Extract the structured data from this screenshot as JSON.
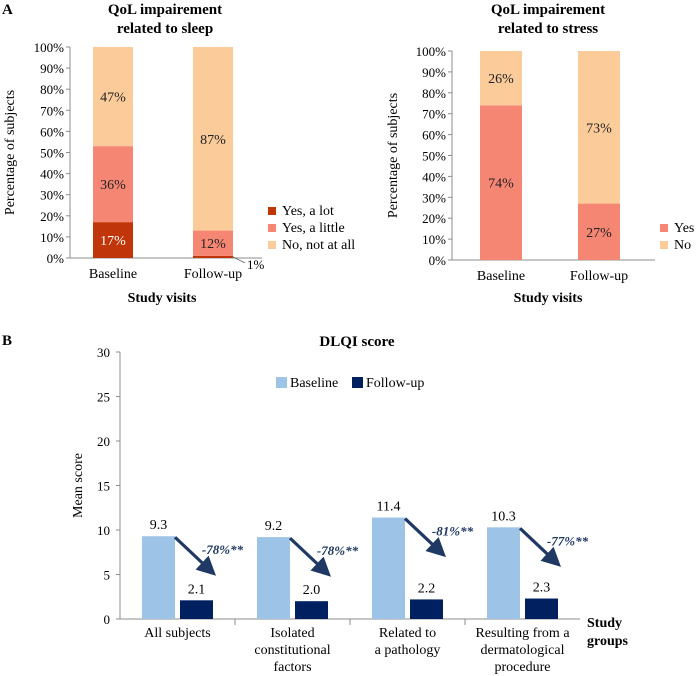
{
  "panel_labels": [
    "A",
    "B"
  ],
  "chart_data": [
    {
      "type": "bar",
      "stacked": true,
      "title_lines": [
        "QoL impairement",
        "related to sleep"
      ],
      "xlabel": "Study visits",
      "ylabel": "Percentage of subjects",
      "ylim": [
        0,
        100
      ],
      "yticks": [
        "0%",
        "10%",
        "20%",
        "30%",
        "40%",
        "50%",
        "60%",
        "70%",
        "80%",
        "90%",
        "100%"
      ],
      "categories": [
        "Baseline",
        "Follow-up"
      ],
      "series": [
        {
          "name": "Yes, a lot",
          "values": [
            17,
            1
          ],
          "labels": [
            "17%",
            "1%"
          ],
          "color": "#c0360a"
        },
        {
          "name": "Yes, a little",
          "values": [
            36,
            12
          ],
          "labels": [
            "36%",
            "12%"
          ],
          "color": "#f68674"
        },
        {
          "name": "No, not at all",
          "values": [
            47,
            87
          ],
          "labels": [
            "47%",
            "87%"
          ],
          "color": "#fbcb9a"
        }
      ],
      "legend": "right",
      "grid": false
    },
    {
      "type": "bar",
      "stacked": true,
      "title_lines": [
        "QoL impairement",
        "related to stress"
      ],
      "xlabel": "Study visits",
      "ylabel": "Percentage of subjects",
      "ylim": [
        0,
        100
      ],
      "yticks": [
        "0%",
        "10%",
        "20%",
        "30%",
        "40%",
        "50%",
        "60%",
        "70%",
        "80%",
        "90%",
        "100%"
      ],
      "categories": [
        "Baseline",
        "Follow-up"
      ],
      "series": [
        {
          "name": "Yes",
          "values": [
            74,
            27
          ],
          "labels": [
            "74%",
            "27%"
          ],
          "color": "#f68674"
        },
        {
          "name": "No",
          "values": [
            26,
            73
          ],
          "labels": [
            "26%",
            "73%"
          ],
          "color": "#fbcb9a"
        }
      ],
      "legend": "right",
      "grid": false
    },
    {
      "type": "bar",
      "title": "DLQI score",
      "ylabel": "Mean score",
      "xlabel_lines": [
        "Study",
        "groups"
      ],
      "ylim": [
        0,
        30
      ],
      "yticks": [
        "0",
        "5",
        "10",
        "15",
        "20",
        "25",
        "30"
      ],
      "categories": [
        [
          "All subjects"
        ],
        [
          "Isolated",
          "constitutional",
          "factors"
        ],
        [
          "Related to",
          "a pathology"
        ],
        [
          "Resulting from a",
          "dermatological",
          "procedure"
        ]
      ],
      "series": [
        {
          "name": "Baseline",
          "values": [
            9.3,
            9.2,
            11.4,
            10.3
          ],
          "labels": [
            "9.3",
            "9.2",
            "11.4",
            "10.3"
          ],
          "color": "#9dc3e6"
        },
        {
          "name": "Follow-up",
          "values": [
            2.1,
            2.0,
            2.2,
            2.3
          ],
          "labels": [
            "2.1",
            "2.0",
            "2.2",
            "2.3"
          ],
          "color": "#002060"
        }
      ],
      "annotations": [
        "-78%**",
        "-78%**",
        "-81%**",
        "-77%**"
      ],
      "annotation_color": "#1f3864",
      "legend": "top-center",
      "grid": false
    }
  ]
}
